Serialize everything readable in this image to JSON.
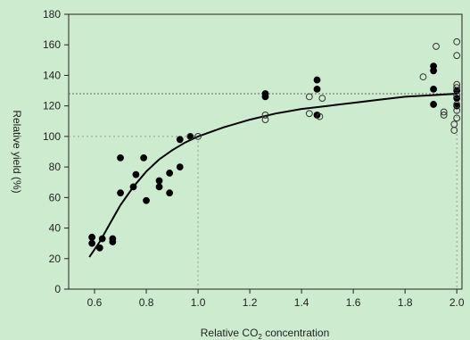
{
  "chart_data": {
    "type": "scatter",
    "xlabel_main": "Relative CO",
    "xlabel_sub": "2",
    "xlabel_tail": " concentration",
    "ylabel": "Relative yield (%)",
    "xlim": [
      0.5,
      2.02
    ],
    "ylim": [
      0,
      180
    ],
    "x_ticks": [
      "0.6",
      "0.8",
      "1.0",
      "1.2",
      "1.4",
      "1.6",
      "1.8",
      "2.0"
    ],
    "x_tick_values": [
      0.6,
      0.8,
      1.0,
      1.2,
      1.4,
      1.6,
      1.8,
      2.0
    ],
    "y_ticks": [
      "0",
      "20",
      "40",
      "60",
      "80",
      "100",
      "120",
      "140",
      "160",
      "180"
    ],
    "y_tick_values": [
      0,
      20,
      40,
      60,
      80,
      100,
      120,
      140,
      160,
      180
    ],
    "reference_lines": {
      "h100_x_end": 1.0,
      "v1_y_top": 100,
      "h128_y": 128,
      "v2_x": 2.0,
      "v2_y_top": 128
    },
    "series": [
      {
        "marker": "filled",
        "color": "#000000",
        "points": [
          [
            0.59,
            30
          ],
          [
            0.59,
            34
          ],
          [
            0.62,
            27
          ],
          [
            0.63,
            33
          ],
          [
            0.67,
            31
          ],
          [
            0.67,
            33
          ],
          [
            0.7,
            63
          ],
          [
            0.7,
            86
          ],
          [
            0.75,
            67
          ],
          [
            0.76,
            75
          ],
          [
            0.8,
            58
          ],
          [
            0.79,
            86
          ],
          [
            0.85,
            67
          ],
          [
            0.85,
            71
          ],
          [
            0.89,
            63
          ],
          [
            0.89,
            76
          ],
          [
            0.93,
            80
          ],
          [
            0.93,
            98
          ],
          [
            0.97,
            100
          ],
          [
            1.26,
            126
          ],
          [
            1.26,
            128
          ],
          [
            1.46,
            114
          ],
          [
            1.46,
            131
          ],
          [
            1.46,
            137
          ],
          [
            1.91,
            121
          ],
          [
            1.91,
            131
          ],
          [
            1.91,
            143
          ],
          [
            1.91,
            146
          ],
          [
            2.0,
            120
          ],
          [
            2.0,
            125
          ],
          [
            2.0,
            130
          ]
        ]
      },
      {
        "marker": "open",
        "color": "#000000",
        "points": [
          [
            0.97,
            100
          ],
          [
            1.0,
            100
          ],
          [
            1.26,
            111
          ],
          [
            1.26,
            114
          ],
          [
            1.43,
            115
          ],
          [
            1.43,
            126
          ],
          [
            1.47,
            113
          ],
          [
            1.48,
            125
          ],
          [
            1.87,
            139
          ],
          [
            1.92,
            159
          ],
          [
            1.95,
            114
          ],
          [
            1.95,
            116
          ],
          [
            1.99,
            104
          ],
          [
            1.99,
            108
          ],
          [
            2.0,
            112
          ],
          [
            2.0,
            117
          ],
          [
            2.0,
            121
          ],
          [
            2.0,
            127
          ],
          [
            2.0,
            132
          ],
          [
            2.0,
            134
          ],
          [
            2.0,
            153
          ],
          [
            2.0,
            162
          ]
        ]
      }
    ],
    "fit_curve": {
      "color": "#000000",
      "points": [
        [
          0.58,
          21
        ],
        [
          0.62,
          31
        ],
        [
          0.66,
          43
        ],
        [
          0.7,
          55
        ],
        [
          0.75,
          67
        ],
        [
          0.8,
          77
        ],
        [
          0.85,
          85
        ],
        [
          0.9,
          91
        ],
        [
          0.95,
          96
        ],
        [
          1.0,
          100
        ],
        [
          1.1,
          106
        ],
        [
          1.2,
          111
        ],
        [
          1.3,
          115
        ],
        [
          1.4,
          118
        ],
        [
          1.5,
          120
        ],
        [
          1.6,
          122
        ],
        [
          1.7,
          124
        ],
        [
          1.8,
          126
        ],
        [
          1.9,
          127
        ],
        [
          2.0,
          128
        ]
      ]
    }
  }
}
